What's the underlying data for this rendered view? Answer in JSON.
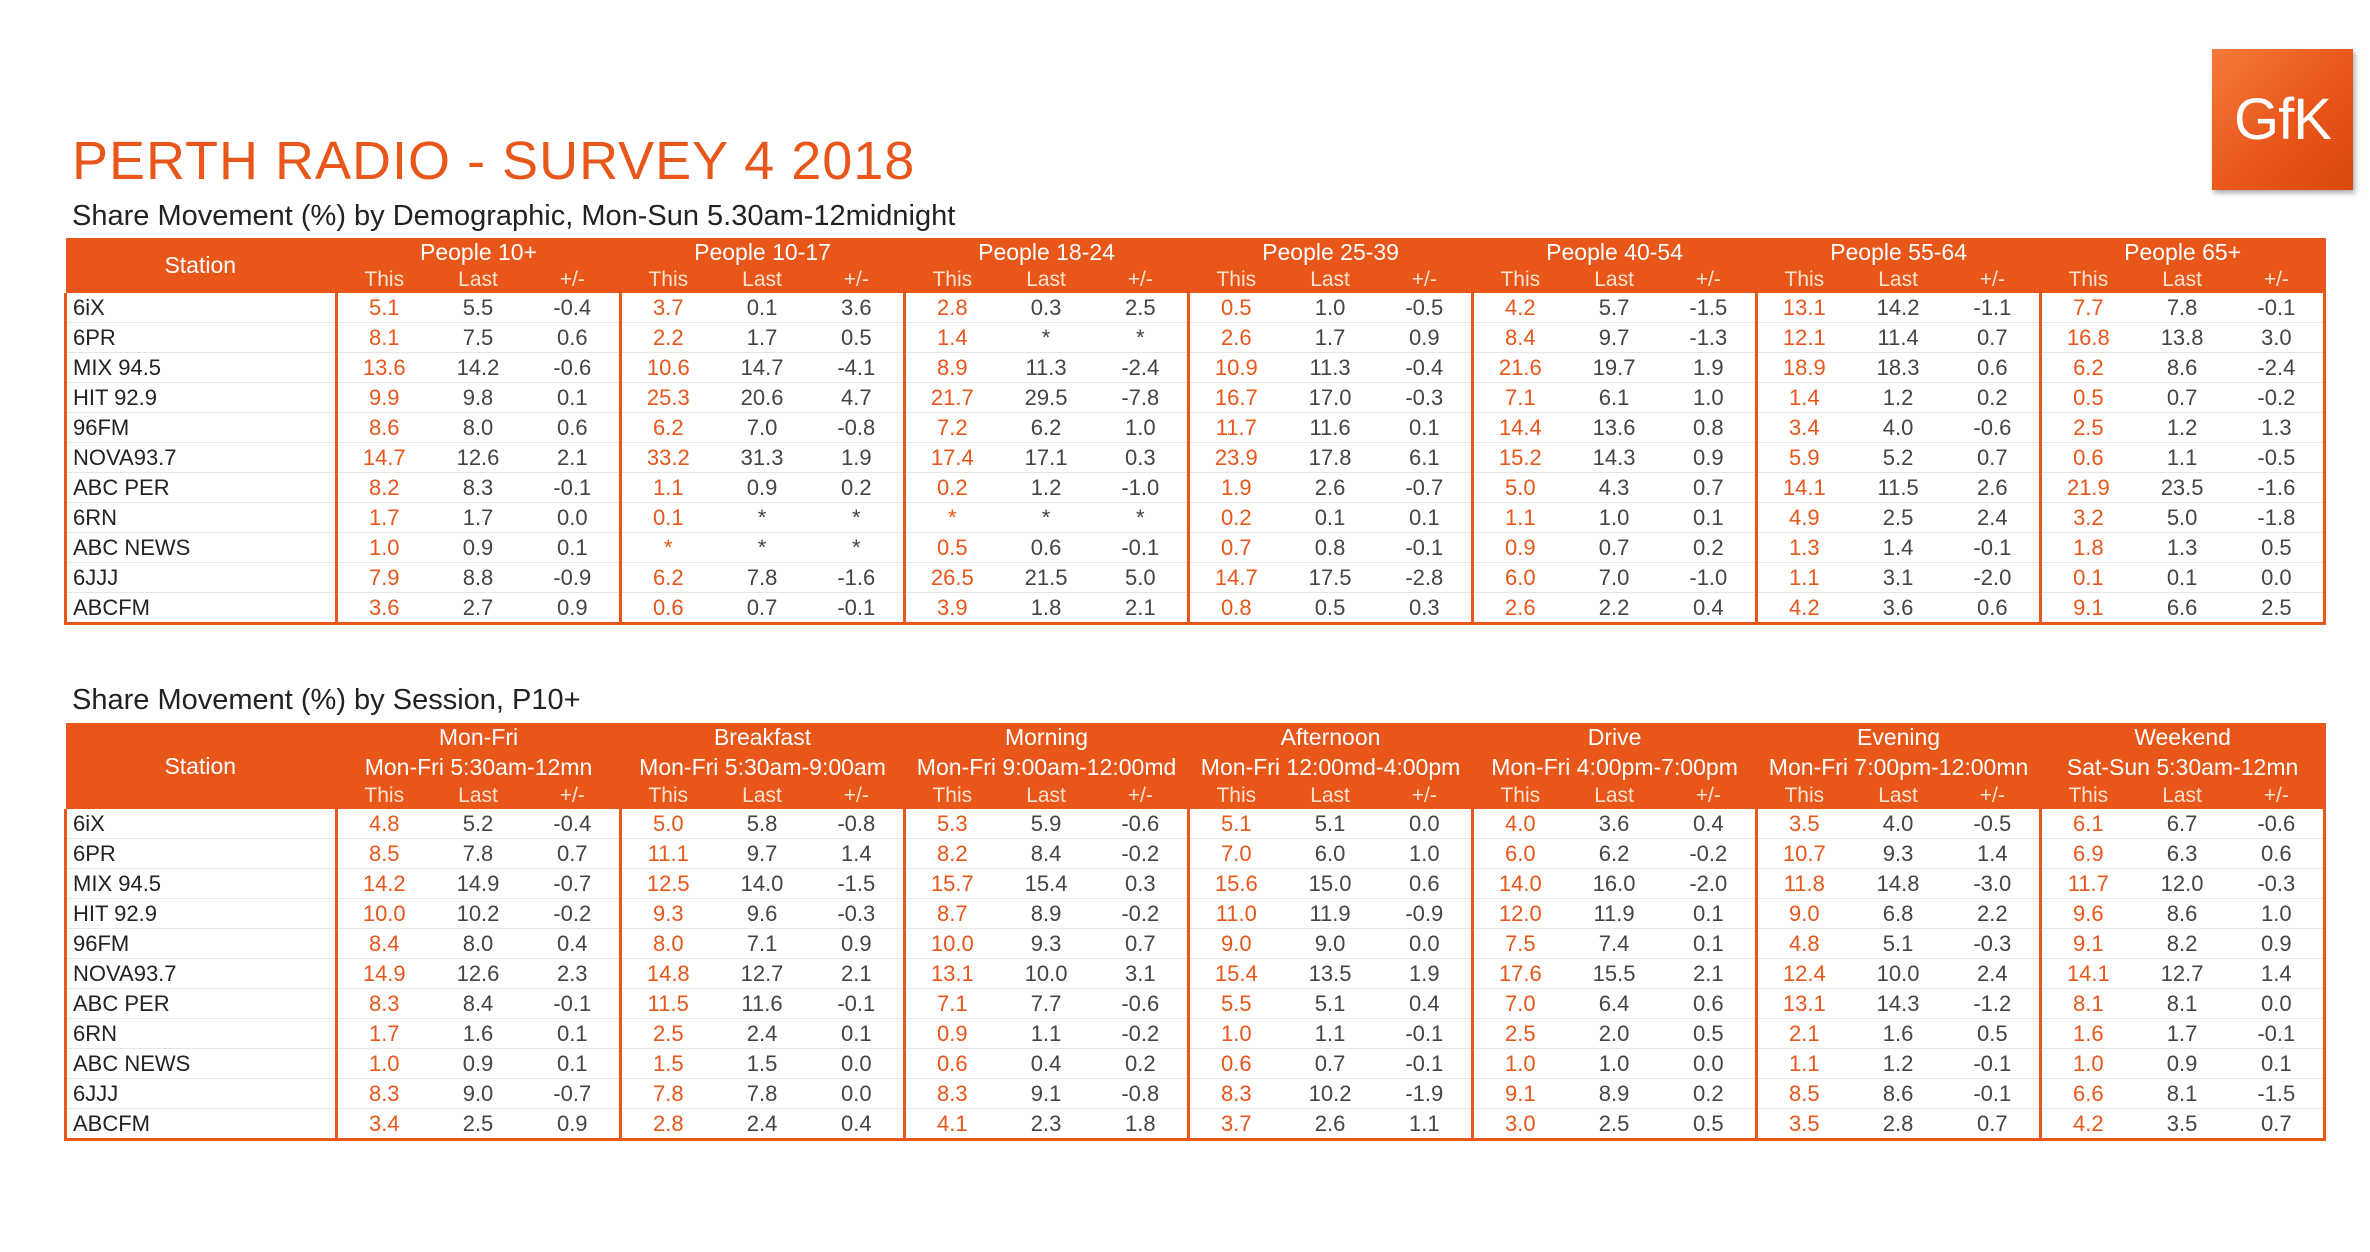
{
  "logo_text": "GfK",
  "title": "PERTH RADIO - SURVEY 4 2018",
  "colors": {
    "accent": "#e8561a",
    "header_text": "#ffffff"
  },
  "table1": {
    "subtitle": "Share Movement (%) by Demographic, Mon-Sun 5.30am-12midnight",
    "station_label": "Station",
    "sub_labels": [
      "This",
      "Last",
      "+/-"
    ],
    "groups": [
      "People 10+",
      "People 10-17",
      "People 18-24",
      "People 25-39",
      "People 40-54",
      "People 55-64",
      "People 65+"
    ],
    "rows": [
      {
        "station": "6iX",
        "values": [
          [
            "5.1",
            "5.5",
            "-0.4"
          ],
          [
            "3.7",
            "0.1",
            "3.6"
          ],
          [
            "2.8",
            "0.3",
            "2.5"
          ],
          [
            "0.5",
            "1.0",
            "-0.5"
          ],
          [
            "4.2",
            "5.7",
            "-1.5"
          ],
          [
            "13.1",
            "14.2",
            "-1.1"
          ],
          [
            "7.7",
            "7.8",
            "-0.1"
          ]
        ]
      },
      {
        "station": "6PR",
        "values": [
          [
            "8.1",
            "7.5",
            "0.6"
          ],
          [
            "2.2",
            "1.7",
            "0.5"
          ],
          [
            "1.4",
            "*",
            "*"
          ],
          [
            "2.6",
            "1.7",
            "0.9"
          ],
          [
            "8.4",
            "9.7",
            "-1.3"
          ],
          [
            "12.1",
            "11.4",
            "0.7"
          ],
          [
            "16.8",
            "13.8",
            "3.0"
          ]
        ]
      },
      {
        "station": "MIX 94.5",
        "values": [
          [
            "13.6",
            "14.2",
            "-0.6"
          ],
          [
            "10.6",
            "14.7",
            "-4.1"
          ],
          [
            "8.9",
            "11.3",
            "-2.4"
          ],
          [
            "10.9",
            "11.3",
            "-0.4"
          ],
          [
            "21.6",
            "19.7",
            "1.9"
          ],
          [
            "18.9",
            "18.3",
            "0.6"
          ],
          [
            "6.2",
            "8.6",
            "-2.4"
          ]
        ]
      },
      {
        "station": "HIT 92.9",
        "values": [
          [
            "9.9",
            "9.8",
            "0.1"
          ],
          [
            "25.3",
            "20.6",
            "4.7"
          ],
          [
            "21.7",
            "29.5",
            "-7.8"
          ],
          [
            "16.7",
            "17.0",
            "-0.3"
          ],
          [
            "7.1",
            "6.1",
            "1.0"
          ],
          [
            "1.4",
            "1.2",
            "0.2"
          ],
          [
            "0.5",
            "0.7",
            "-0.2"
          ]
        ]
      },
      {
        "station": "96FM",
        "values": [
          [
            "8.6",
            "8.0",
            "0.6"
          ],
          [
            "6.2",
            "7.0",
            "-0.8"
          ],
          [
            "7.2",
            "6.2",
            "1.0"
          ],
          [
            "11.7",
            "11.6",
            "0.1"
          ],
          [
            "14.4",
            "13.6",
            "0.8"
          ],
          [
            "3.4",
            "4.0",
            "-0.6"
          ],
          [
            "2.5",
            "1.2",
            "1.3"
          ]
        ]
      },
      {
        "station": "NOVA93.7",
        "values": [
          [
            "14.7",
            "12.6",
            "2.1"
          ],
          [
            "33.2",
            "31.3",
            "1.9"
          ],
          [
            "17.4",
            "17.1",
            "0.3"
          ],
          [
            "23.9",
            "17.8",
            "6.1"
          ],
          [
            "15.2",
            "14.3",
            "0.9"
          ],
          [
            "5.9",
            "5.2",
            "0.7"
          ],
          [
            "0.6",
            "1.1",
            "-0.5"
          ]
        ]
      },
      {
        "station": "ABC PER",
        "values": [
          [
            "8.2",
            "8.3",
            "-0.1"
          ],
          [
            "1.1",
            "0.9",
            "0.2"
          ],
          [
            "0.2",
            "1.2",
            "-1.0"
          ],
          [
            "1.9",
            "2.6",
            "-0.7"
          ],
          [
            "5.0",
            "4.3",
            "0.7"
          ],
          [
            "14.1",
            "11.5",
            "2.6"
          ],
          [
            "21.9",
            "23.5",
            "-1.6"
          ]
        ]
      },
      {
        "station": "6RN",
        "values": [
          [
            "1.7",
            "1.7",
            "0.0"
          ],
          [
            "0.1",
            "*",
            "*"
          ],
          [
            "*",
            "*",
            "*"
          ],
          [
            "0.2",
            "0.1",
            "0.1"
          ],
          [
            "1.1",
            "1.0",
            "0.1"
          ],
          [
            "4.9",
            "2.5",
            "2.4"
          ],
          [
            "3.2",
            "5.0",
            "-1.8"
          ]
        ]
      },
      {
        "station": "ABC NEWS",
        "values": [
          [
            "1.0",
            "0.9",
            "0.1"
          ],
          [
            "*",
            "*",
            "*"
          ],
          [
            "0.5",
            "0.6",
            "-0.1"
          ],
          [
            "0.7",
            "0.8",
            "-0.1"
          ],
          [
            "0.9",
            "0.7",
            "0.2"
          ],
          [
            "1.3",
            "1.4",
            "-0.1"
          ],
          [
            "1.8",
            "1.3",
            "0.5"
          ]
        ]
      },
      {
        "station": "6JJJ",
        "values": [
          [
            "7.9",
            "8.8",
            "-0.9"
          ],
          [
            "6.2",
            "7.8",
            "-1.6"
          ],
          [
            "26.5",
            "21.5",
            "5.0"
          ],
          [
            "14.7",
            "17.5",
            "-2.8"
          ],
          [
            "6.0",
            "7.0",
            "-1.0"
          ],
          [
            "1.1",
            "3.1",
            "-2.0"
          ],
          [
            "0.1",
            "0.1",
            "0.0"
          ]
        ]
      },
      {
        "station": "ABCFM",
        "values": [
          [
            "3.6",
            "2.7",
            "0.9"
          ],
          [
            "0.6",
            "0.7",
            "-0.1"
          ],
          [
            "3.9",
            "1.8",
            "2.1"
          ],
          [
            "0.8",
            "0.5",
            "0.3"
          ],
          [
            "2.6",
            "2.2",
            "0.4"
          ],
          [
            "4.2",
            "3.6",
            "0.6"
          ],
          [
            "9.1",
            "6.6",
            "2.5"
          ]
        ]
      }
    ]
  },
  "table2": {
    "subtitle": "Share Movement (%) by Session, P10+",
    "station_label": "Station",
    "sub_labels": [
      "This",
      "Last",
      "+/-"
    ],
    "groups": [
      "Mon-Fri",
      "Breakfast",
      "Morning",
      "Afternoon",
      "Drive",
      "Evening",
      "Weekend"
    ],
    "times": [
      "Mon-Fri 5:30am-12mn",
      "Mon-Fri 5:30am-9:00am",
      "Mon-Fri 9:00am-12:00md",
      "Mon-Fri 12:00md-4:00pm",
      "Mon-Fri 4:00pm-7:00pm",
      "Mon-Fri 7:00pm-12:00mn",
      "Sat-Sun 5:30am-12mn"
    ],
    "rows": [
      {
        "station": "6iX",
        "values": [
          [
            "4.8",
            "5.2",
            "-0.4"
          ],
          [
            "5.0",
            "5.8",
            "-0.8"
          ],
          [
            "5.3",
            "5.9",
            "-0.6"
          ],
          [
            "5.1",
            "5.1",
            "0.0"
          ],
          [
            "4.0",
            "3.6",
            "0.4"
          ],
          [
            "3.5",
            "4.0",
            "-0.5"
          ],
          [
            "6.1",
            "6.7",
            "-0.6"
          ]
        ]
      },
      {
        "station": "6PR",
        "values": [
          [
            "8.5",
            "7.8",
            "0.7"
          ],
          [
            "11.1",
            "9.7",
            "1.4"
          ],
          [
            "8.2",
            "8.4",
            "-0.2"
          ],
          [
            "7.0",
            "6.0",
            "1.0"
          ],
          [
            "6.0",
            "6.2",
            "-0.2"
          ],
          [
            "10.7",
            "9.3",
            "1.4"
          ],
          [
            "6.9",
            "6.3",
            "0.6"
          ]
        ]
      },
      {
        "station": "MIX 94.5",
        "values": [
          [
            "14.2",
            "14.9",
            "-0.7"
          ],
          [
            "12.5",
            "14.0",
            "-1.5"
          ],
          [
            "15.7",
            "15.4",
            "0.3"
          ],
          [
            "15.6",
            "15.0",
            "0.6"
          ],
          [
            "14.0",
            "16.0",
            "-2.0"
          ],
          [
            "11.8",
            "14.8",
            "-3.0"
          ],
          [
            "11.7",
            "12.0",
            "-0.3"
          ]
        ]
      },
      {
        "station": "HIT 92.9",
        "values": [
          [
            "10.0",
            "10.2",
            "-0.2"
          ],
          [
            "9.3",
            "9.6",
            "-0.3"
          ],
          [
            "8.7",
            "8.9",
            "-0.2"
          ],
          [
            "11.0",
            "11.9",
            "-0.9"
          ],
          [
            "12.0",
            "11.9",
            "0.1"
          ],
          [
            "9.0",
            "6.8",
            "2.2"
          ],
          [
            "9.6",
            "8.6",
            "1.0"
          ]
        ]
      },
      {
        "station": "96FM",
        "values": [
          [
            "8.4",
            "8.0",
            "0.4"
          ],
          [
            "8.0",
            "7.1",
            "0.9"
          ],
          [
            "10.0",
            "9.3",
            "0.7"
          ],
          [
            "9.0",
            "9.0",
            "0.0"
          ],
          [
            "7.5",
            "7.4",
            "0.1"
          ],
          [
            "4.8",
            "5.1",
            "-0.3"
          ],
          [
            "9.1",
            "8.2",
            "0.9"
          ]
        ]
      },
      {
        "station": "NOVA93.7",
        "values": [
          [
            "14.9",
            "12.6",
            "2.3"
          ],
          [
            "14.8",
            "12.7",
            "2.1"
          ],
          [
            "13.1",
            "10.0",
            "3.1"
          ],
          [
            "15.4",
            "13.5",
            "1.9"
          ],
          [
            "17.6",
            "15.5",
            "2.1"
          ],
          [
            "12.4",
            "10.0",
            "2.4"
          ],
          [
            "14.1",
            "12.7",
            "1.4"
          ]
        ]
      },
      {
        "station": "ABC PER",
        "values": [
          [
            "8.3",
            "8.4",
            "-0.1"
          ],
          [
            "11.5",
            "11.6",
            "-0.1"
          ],
          [
            "7.1",
            "7.7",
            "-0.6"
          ],
          [
            "5.5",
            "5.1",
            "0.4"
          ],
          [
            "7.0",
            "6.4",
            "0.6"
          ],
          [
            "13.1",
            "14.3",
            "-1.2"
          ],
          [
            "8.1",
            "8.1",
            "0.0"
          ]
        ]
      },
      {
        "station": "6RN",
        "values": [
          [
            "1.7",
            "1.6",
            "0.1"
          ],
          [
            "2.5",
            "2.4",
            "0.1"
          ],
          [
            "0.9",
            "1.1",
            "-0.2"
          ],
          [
            "1.0",
            "1.1",
            "-0.1"
          ],
          [
            "2.5",
            "2.0",
            "0.5"
          ],
          [
            "2.1",
            "1.6",
            "0.5"
          ],
          [
            "1.6",
            "1.7",
            "-0.1"
          ]
        ]
      },
      {
        "station": "ABC NEWS",
        "values": [
          [
            "1.0",
            "0.9",
            "0.1"
          ],
          [
            "1.5",
            "1.5",
            "0.0"
          ],
          [
            "0.6",
            "0.4",
            "0.2"
          ],
          [
            "0.6",
            "0.7",
            "-0.1"
          ],
          [
            "1.0",
            "1.0",
            "0.0"
          ],
          [
            "1.1",
            "1.2",
            "-0.1"
          ],
          [
            "1.0",
            "0.9",
            "0.1"
          ]
        ]
      },
      {
        "station": "6JJJ",
        "values": [
          [
            "8.3",
            "9.0",
            "-0.7"
          ],
          [
            "7.8",
            "7.8",
            "0.0"
          ],
          [
            "8.3",
            "9.1",
            "-0.8"
          ],
          [
            "8.3",
            "10.2",
            "-1.9"
          ],
          [
            "9.1",
            "8.9",
            "0.2"
          ],
          [
            "8.5",
            "8.6",
            "-0.1"
          ],
          [
            "6.6",
            "8.1",
            "-1.5"
          ]
        ]
      },
      {
        "station": "ABCFM",
        "values": [
          [
            "3.4",
            "2.5",
            "0.9"
          ],
          [
            "2.8",
            "2.4",
            "0.4"
          ],
          [
            "4.1",
            "2.3",
            "1.8"
          ],
          [
            "3.7",
            "2.6",
            "1.1"
          ],
          [
            "3.0",
            "2.5",
            "0.5"
          ],
          [
            "3.5",
            "2.8",
            "0.7"
          ],
          [
            "4.2",
            "3.5",
            "0.7"
          ]
        ]
      }
    ]
  }
}
